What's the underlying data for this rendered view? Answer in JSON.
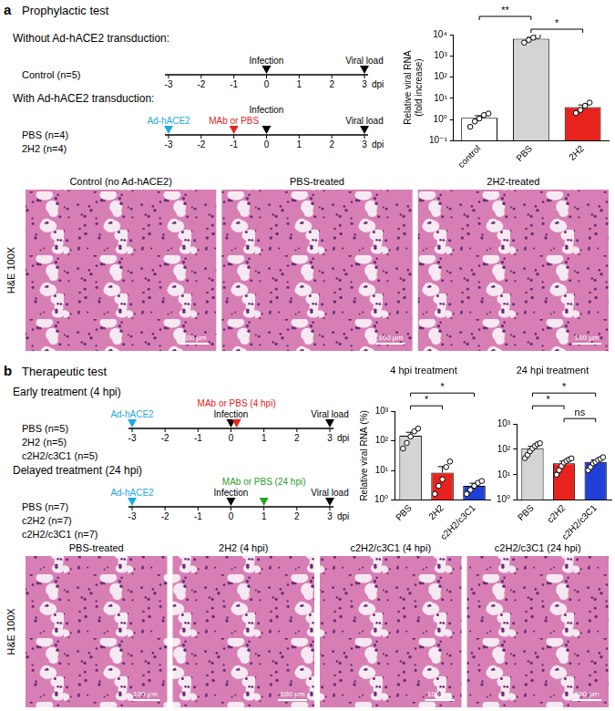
{
  "chart_data": [
    {
      "type": "bar",
      "y_label": [
        "Relative viral RNA",
        "(fold increase)"
      ],
      "categories": [
        "control",
        "PBS",
        "2H2"
      ],
      "values": [
        1.2,
        6400,
        3.8
      ],
      "errors": [
        0.3,
        1000,
        1.0
      ],
      "points": [
        [
          0.45,
          0.8,
          1.1,
          1.6,
          1.9
        ],
        [
          4200,
          5600,
          7200,
          8500
        ],
        [
          2.0,
          2.8,
          4.4,
          6.2
        ]
      ],
      "colors": [
        "#ffffff",
        "#d4d4d4",
        "#e8231e"
      ],
      "log": "y",
      "grid": false,
      "ylim": [
        0.1,
        10000
      ],
      "yticks": [
        {
          "value": 0.1,
          "label": "10⁻¹"
        },
        {
          "value": 1,
          "label": "10⁰"
        },
        {
          "value": 10,
          "label": "10¹"
        },
        {
          "value": 100,
          "label": "10²"
        },
        {
          "value": 1000,
          "label": "10³"
        },
        {
          "value": 10000,
          "label": "10⁴"
        }
      ],
      "significance": [
        {
          "from": "PBS",
          "to": "2H2",
          "label": "*"
        },
        {
          "from": "control",
          "to": "PBS",
          "label": "**"
        }
      ]
    },
    {
      "type": "bar",
      "title": "4 hpi treatment",
      "y_label": "Relative viral RNA (%)",
      "categories": [
        "PBS",
        "2H2",
        "c2H2/c3C1"
      ],
      "values": [
        150,
        8.5,
        3.0
      ],
      "errors": [
        45,
        5,
        0.7
      ],
      "points": [
        [
          55,
          85,
          140,
          210,
          260
        ],
        [
          1.6,
          3,
          5,
          13,
          20
        ],
        [
          1.6,
          2.2,
          3.0,
          3.8,
          4.4
        ]
      ],
      "colors": [
        "#d4d4d4",
        "#e8231e",
        "#1f3fd6"
      ],
      "log": "y",
      "grid": false,
      "ylim": [
        1,
        1000
      ],
      "yticks": [
        {
          "value": 1,
          "label": "10⁰"
        },
        {
          "value": 10,
          "label": "10¹"
        },
        {
          "value": 100,
          "label": "10²"
        },
        {
          "value": 1000,
          "label": "10³"
        }
      ],
      "significance": [
        {
          "from": "PBS",
          "to": "2H2",
          "label": "*"
        },
        {
          "from": "PBS",
          "to": "c2H2/c3C1",
          "label": "*"
        }
      ]
    },
    {
      "type": "bar",
      "title": "24 hpi treatment",
      "categories": [
        "PBS",
        "c2H2",
        "c2H2/c3C1"
      ],
      "values": [
        110,
        28,
        32
      ],
      "errors": [
        22,
        6,
        6
      ],
      "points": [
        [
          45,
          60,
          85,
          110,
          135,
          160,
          175
        ],
        [
          10,
          15,
          22,
          30,
          35,
          40,
          44
        ],
        [
          15,
          20,
          28,
          32,
          38,
          42,
          49
        ]
      ],
      "colors": [
        "#d4d4d4",
        "#e8231e",
        "#1f3fd6"
      ],
      "log": "y",
      "grid": false,
      "ylim": [
        1,
        1000
      ],
      "yticks": [
        {
          "value": 1,
          "label": "10⁰"
        },
        {
          "value": 10,
          "label": "10¹"
        },
        {
          "value": 100,
          "label": "10²"
        },
        {
          "value": 1000,
          "label": "10³"
        }
      ],
      "significance": [
        {
          "from": "c2H2",
          "to": "c2H2/c3C1",
          "label": "ns"
        },
        {
          "from": "PBS",
          "to": "c2H2",
          "label": "*"
        },
        {
          "from": "PBS",
          "to": "c2H2/c3C1",
          "label": "*"
        }
      ]
    }
  ],
  "panels": [
    {
      "label": "a",
      "title": "Prophylactic test",
      "timelines": [
        {
          "heading": "Without Ad-hACE2 transduction:",
          "groups": [
            "Control (n=5)"
          ],
          "ticks": [
            -3,
            -2,
            -1,
            0,
            1,
            2,
            3
          ],
          "unit": "dpi",
          "events": [
            {
              "at": 0,
              "label": "Infection",
              "color": "#000000"
            },
            {
              "at": 3,
              "label": "Viral load",
              "color": "#000000"
            }
          ]
        },
        {
          "heading": "With Ad-hACE2 transduction:",
          "groups": [
            "PBS (n=4)",
            "2H2 (n=4)"
          ],
          "ticks": [
            -3,
            -2,
            -1,
            0,
            1,
            2,
            3
          ],
          "unit": "dpi",
          "events": [
            {
              "at": -3,
              "label": "Ad-hACE2",
              "color": "#1fa9e0"
            },
            {
              "at": -1,
              "label": "MAb or PBS",
              "color": "#e8231e"
            },
            {
              "at": 0,
              "label": "Infection",
              "color": "#000000"
            },
            {
              "at": 3,
              "label": "Viral load",
              "color": "#000000"
            }
          ]
        }
      ],
      "histology": {
        "stain": "H&E 100X",
        "scale_bar": "100 μm",
        "images": [
          "Control (no Ad-hACE2)",
          "PBS-treated",
          "2H2-treated"
        ]
      }
    },
    {
      "label": "b",
      "title": "Therapeutic test",
      "timelines": [
        {
          "heading": "Early treatment (4 hpi)",
          "groups": [
            "PBS (n=5)",
            "2H2 (n=5)",
            "c2H2/c3C1 (n=5)"
          ],
          "ticks": [
            -3,
            -2,
            -1,
            0,
            1,
            2,
            3
          ],
          "unit": "dpi",
          "events": [
            {
              "at": -3,
              "label": "Ad-hACE2",
              "color": "#1fa9e0"
            },
            {
              "at": 0,
              "label": "Infection",
              "color": "#000000"
            },
            {
              "at": 0.17,
              "label": "MAb or PBS (4 hpi)",
              "color": "#e8231e"
            },
            {
              "at": 3,
              "label": "Viral load",
              "color": "#000000"
            }
          ]
        },
        {
          "heading": "Delayed treatment (24 hpi)",
          "groups": [
            "PBS (n=7)",
            "c2H2 (n=7)",
            "c2H2/c3C1 (n=7)"
          ],
          "ticks": [
            -3,
            -2,
            -1,
            0,
            1,
            2,
            3
          ],
          "unit": "dpi",
          "events": [
            {
              "at": -3,
              "label": "Ad-hACE2",
              "color": "#1fa9e0"
            },
            {
              "at": 0,
              "label": "Infection",
              "color": "#000000"
            },
            {
              "at": 1,
              "label": "MAb or PBS (24 hpi)",
              "color": "#2aa02b"
            },
            {
              "at": 3,
              "label": "Viral load",
              "color": "#000000"
            }
          ]
        }
      ],
      "histology": {
        "stain": "H&E 100X",
        "scale_bar": "100 μm",
        "images": [
          "PBS-treated",
          "2H2 (4 hpi)",
          "c2H2/c3C1 (4 hpi)",
          "c2H2/c3C1 (24 hpi)"
        ]
      }
    }
  ]
}
